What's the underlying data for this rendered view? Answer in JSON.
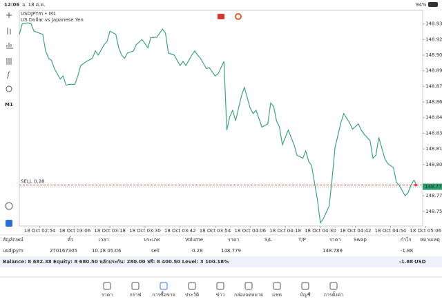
{
  "status_bar": {
    "time": "12:06",
    "date": "อ. 18 ต.ค.",
    "battery": "94%"
  },
  "chart_header": {
    "symbol": "USDJPYm • M1",
    "description": "US Dollar vs Japanese Yen"
  },
  "toolbar": {
    "timeframe": "M1"
  },
  "chart_data": {
    "type": "line",
    "x": [
      -7,
      -6,
      -4,
      -3,
      -2,
      0,
      1,
      2,
      3,
      4,
      5,
      7,
      8,
      9,
      10,
      12,
      13,
      14,
      16,
      18,
      19,
      20,
      22,
      23,
      24,
      26,
      27,
      28,
      29,
      30,
      32,
      33,
      35,
      37,
      38,
      40,
      42,
      43,
      44,
      46,
      47,
      48,
      49,
      50,
      52,
      53,
      54,
      55,
      57,
      58,
      60,
      61,
      63,
      64,
      65,
      66,
      67,
      69,
      70,
      72,
      73,
      74,
      76,
      78,
      79,
      80,
      81,
      82,
      83,
      85,
      86,
      87,
      88,
      90,
      91,
      92,
      93,
      95,
      96,
      97,
      99,
      100,
      101,
      103,
      104,
      106,
      107,
      109,
      110,
      111,
      113,
      114,
      115,
      116,
      117,
      118,
      119,
      121,
      122,
      123,
      125,
      126,
      127,
      128,
      129
    ],
    "series": [
      {
        "name": "USDJPYm",
        "color": "#3aa57a",
        "values": [
          148.925,
          148.935,
          148.936,
          148.935,
          148.928,
          148.926,
          148.925,
          148.909,
          148.902,
          148.9,
          148.892,
          148.882,
          148.885,
          148.876,
          148.877,
          148.877,
          148.885,
          148.895,
          148.899,
          148.902,
          148.909,
          148.905,
          148.915,
          148.918,
          148.928,
          148.925,
          148.912,
          148.905,
          148.902,
          148.907,
          148.909,
          148.915,
          148.92,
          148.912,
          148.922,
          148.922,
          148.93,
          148.926,
          148.907,
          148.905,
          148.9,
          148.895,
          148.899,
          148.895,
          148.905,
          148.909,
          148.905,
          148.902,
          148.892,
          148.893,
          148.885,
          148.887,
          148.899,
          148.833,
          148.846,
          148.852,
          148.842,
          148.866,
          148.874,
          148.854,
          148.849,
          148.852,
          148.836,
          148.839,
          148.859,
          148.856,
          148.842,
          148.836,
          148.819,
          148.833,
          148.826,
          148.819,
          148.809,
          148.806,
          148.813,
          148.803,
          148.799,
          148.766,
          148.744,
          148.748,
          148.76,
          148.786,
          148.816,
          148.84,
          148.849,
          148.84,
          148.834,
          148.839,
          148.833,
          148.829,
          148.823,
          148.806,
          148.809,
          148.826,
          148.816,
          148.806,
          148.801,
          148.797,
          148.783,
          148.78,
          148.77,
          148.773,
          148.78,
          148.785,
          148.78
        ]
      }
    ],
    "xlim": [
      -7,
      131
    ],
    "xticks": [
      {
        "value": 0,
        "label": "18 Oct 02:54"
      },
      {
        "value": 12,
        "label": "18 Oct 03:06"
      },
      {
        "value": 24,
        "label": "18 Oct 03:18"
      },
      {
        "value": 36,
        "label": "18 Oct 03:30"
      },
      {
        "value": 48,
        "label": "18 Oct 03:42"
      },
      {
        "value": 60,
        "label": "18 Oct 03:54"
      },
      {
        "value": 72,
        "label": "18 Oct 04:06"
      },
      {
        "value": 84,
        "label": "18 Oct 04:18"
      },
      {
        "value": 96,
        "label": "18 Oct 04:30"
      },
      {
        "value": 108,
        "label": "18 Oct 04:42"
      },
      {
        "value": 120,
        "label": "18 Oct 04:54"
      },
      {
        "value": 132,
        "label": "18 Oct 05:06"
      }
    ],
    "ylim": [
      148.741,
      148.948
    ],
    "yticks": [
      148.935,
      {
        "value": 148.92,
        "label": "148.920"
      },
      148.905,
      {
        "value": 148.89,
        "label": "148.890"
      },
      148.875,
      {
        "value": 148.86,
        "label": "148.860"
      },
      148.845,
      {
        "value": 148.83,
        "label": "148.830"
      },
      148.815,
      {
        "value": 148.8,
        "label": "148.800"
      },
      {
        "value": 148.77,
        "label": "148.770"
      },
      148.755
    ],
    "price_line": 148.779,
    "order_label": "SELL 0.28",
    "grid": false
  },
  "table": {
    "header": [
      "สัญลักษณ์",
      "ตั๋ว",
      "เวลา",
      "ประเภท",
      "Volume",
      "ราคา",
      "S/L",
      "T/P",
      "ราคา",
      "Swap",
      "กำไร",
      "หมายเหตุ"
    ],
    "row": {
      "symbol": "usdjpym",
      "ticket": "270167305",
      "time": "10.18 05:06",
      "type": "sell",
      "volume": "0.28",
      "price": "148.779",
      "current_price": "148.789",
      "profit": "-1.88"
    },
    "summary": "Balance: 8 682.38 Equity: 8 680.50 หลักประกัน: 280.00 ฟรี: 8 400.50 Level: 3 100.18%",
    "total_profit": "-1.88",
    "currency": "USD"
  },
  "nav": [
    "ราคา",
    "กราฟ",
    "การซื้อขาย",
    "ประวัติ",
    "ข่าว",
    "กล่องจดหมาย",
    "แชท",
    "บัญชี",
    "การตั้งค่า"
  ],
  "nav_active": 2
}
